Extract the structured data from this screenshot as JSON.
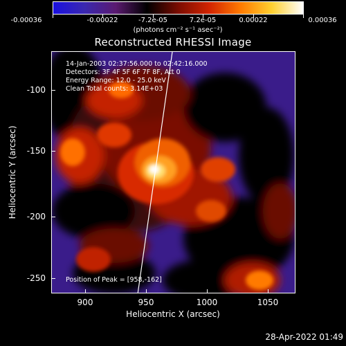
{
  "colorbar": {
    "labels": [
      "-0.00036",
      "-0.00022",
      "-7.2e-05",
      "7.2e-05",
      "0.00022",
      "0.00036"
    ],
    "units": "(photons cm⁻² s⁻¹ asec⁻²)",
    "colors": [
      "#1a10e0",
      "#3a28b0",
      "#5a1a70",
      "#000000",
      "#7a0c00",
      "#d22400",
      "#ff7a00",
      "#ffd030",
      "#ffffff"
    ]
  },
  "title": "Reconstructed RHESSI Image",
  "info": {
    "time_range": "14-Jan-2003 02:37:56.000 to 02:42:16.000",
    "detectors": "Detectors: 3F 4F 5F 6F 7F 8F, Att 0",
    "energy": "Energy Range: 12.0 - 25.0 keV",
    "clean": "Clean     Total counts: 3.14E+03",
    "peak": "Position of Peak = [958,-162]"
  },
  "axes": {
    "x_title": "Heliocentric X (arcsec)",
    "y_title": "Heliocentric Y (arcsec)",
    "x_ticks": [
      "900",
      "950",
      "1000",
      "1050"
    ],
    "y_ticks": [
      "-100",
      "-150",
      "-200",
      "-250"
    ]
  },
  "timestamp": "28-Apr-2022 01:49"
}
